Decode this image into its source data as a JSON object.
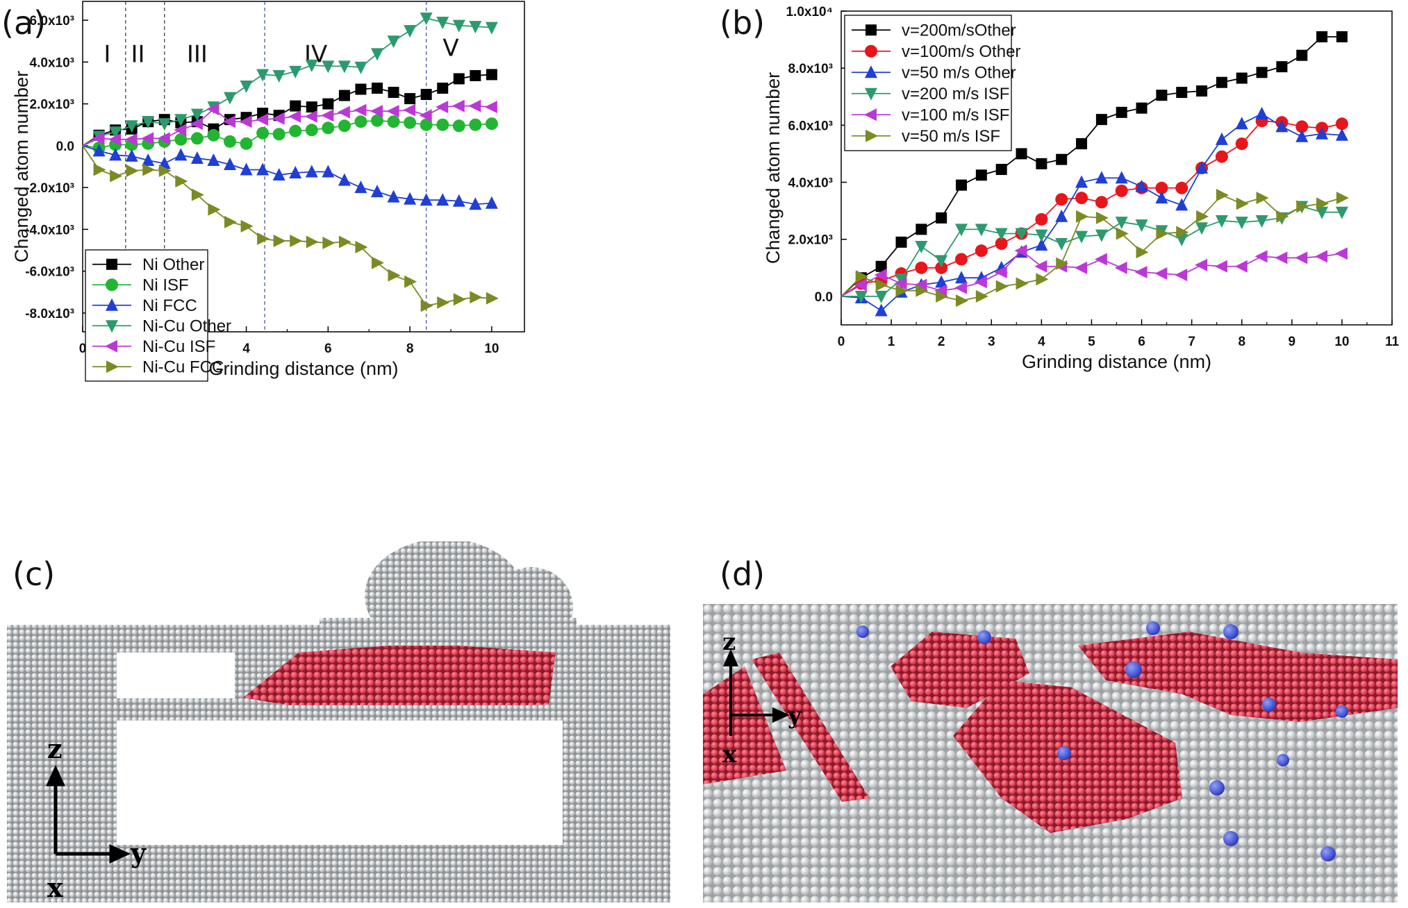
{
  "panels": {
    "a": "(a)",
    "b": "(b)",
    "c": "(c)",
    "d": "(d)"
  },
  "chart_data": [
    {
      "type": "line",
      "panel": "(a)",
      "xlabel": "Grinding distance (nm)",
      "ylabel": "Changed atom number",
      "xlim": [
        0,
        10.8
      ],
      "ylim": [
        -8900,
        6900
      ],
      "xticks": [
        "0",
        "2",
        "4",
        "6",
        "8",
        "10"
      ],
      "xtick_values": [
        0,
        2,
        4,
        6,
        8,
        10
      ],
      "yticks": [
        "-8.0x10³",
        "-6.0x10³",
        "-4.0x10³",
        "-2.0x10³",
        "0.0",
        "2.0x10³",
        "4.0x10³",
        "6.0x10³"
      ],
      "ytick_values": [
        -8000,
        -6000,
        -4000,
        -2000,
        0,
        2000,
        4000,
        6000
      ],
      "vlines": [
        1.05,
        2.0,
        4.45,
        8.4
      ],
      "regions": [
        {
          "label": "I",
          "x": 0.6,
          "y": 4000
        },
        {
          "label": "II",
          "x": 1.35,
          "y": 4000
        },
        {
          "label": "III",
          "x": 2.8,
          "y": 4000
        },
        {
          "label": "IV",
          "x": 5.7,
          "y": 4000
        },
        {
          "label": "V",
          "x": 9.0,
          "y": 4300
        }
      ],
      "legend_position": "bottom-left",
      "x": [
        0,
        0.4,
        0.8,
        1.2,
        1.6,
        2.0,
        2.4,
        2.8,
        3.2,
        3.6,
        4.0,
        4.4,
        4.8,
        5.2,
        5.6,
        6.0,
        6.4,
        6.8,
        7.2,
        7.6,
        8.0,
        8.4,
        8.8,
        9.2,
        9.6,
        10.0
      ],
      "series": [
        {
          "name": "Ni Other",
          "color": "#000000",
          "marker": "square",
          "values": [
            0,
            500,
            750,
            800,
            1150,
            1250,
            1100,
            1150,
            800,
            1250,
            1350,
            1550,
            1450,
            1900,
            1850,
            2000,
            2400,
            2700,
            2750,
            2550,
            2250,
            2450,
            2750,
            3200,
            3350,
            3400
          ]
        },
        {
          "name": "Ni ISF",
          "color": "#22b531",
          "marker": "circle",
          "values": [
            0,
            -100,
            50,
            50,
            100,
            200,
            300,
            350,
            500,
            200,
            100,
            600,
            550,
            700,
            750,
            850,
            950,
            1150,
            1200,
            1150,
            1100,
            1000,
            1000,
            950,
            1000,
            1050
          ]
        },
        {
          "name": "Ni FCC",
          "color": "#1f3fd6",
          "marker": "triangle-up",
          "values": [
            0,
            -250,
            -450,
            -500,
            -700,
            -850,
            -450,
            -600,
            -700,
            -900,
            -1150,
            -1150,
            -1400,
            -1300,
            -1250,
            -1250,
            -1650,
            -2000,
            -2200,
            -2450,
            -2550,
            -2600,
            -2600,
            -2650,
            -2800,
            -2750
          ]
        },
        {
          "name": "Ni-Cu Other",
          "color": "#2c9a6e",
          "marker": "triangle-down",
          "values": [
            0,
            450,
            650,
            950,
            1150,
            1050,
            1250,
            1500,
            1850,
            2300,
            2850,
            3400,
            3350,
            3550,
            3850,
            3800,
            3800,
            3750,
            4400,
            5000,
            5500,
            6100,
            5900,
            5750,
            5700,
            5650
          ]
        },
        {
          "name": "Ni-Cu ISF",
          "color": "#bb38d6",
          "marker": "triangle-left",
          "values": [
            0,
            350,
            300,
            300,
            350,
            350,
            750,
            1050,
            1750,
            1150,
            1150,
            1250,
            1300,
            1400,
            1400,
            1450,
            1600,
            1700,
            1650,
            1650,
            1700,
            1450,
            1850,
            1900,
            1900,
            1850
          ]
        },
        {
          "name": "Ni-Cu FCC",
          "color": "#7c8a23",
          "marker": "triangle-right",
          "values": [
            0,
            -1150,
            -1450,
            -1200,
            -1150,
            -1200,
            -1700,
            -2350,
            -3050,
            -3650,
            -3850,
            -4450,
            -4550,
            -4550,
            -4600,
            -4650,
            -4600,
            -4850,
            -5600,
            -6200,
            -6500,
            -7650,
            -7500,
            -7350,
            -7250,
            -7300
          ]
        }
      ]
    },
    {
      "type": "line",
      "panel": "(b)",
      "xlabel": "Grinding distance (nm)",
      "ylabel": "Changed atom number",
      "xlim": [
        0,
        11
      ],
      "ylim": [
        -1000,
        10000
      ],
      "xticks": [
        "0",
        "1",
        "2",
        "3",
        "4",
        "5",
        "6",
        "7",
        "8",
        "9",
        "10",
        "11"
      ],
      "xtick_values": [
        0,
        1,
        2,
        3,
        4,
        5,
        6,
        7,
        8,
        9,
        10,
        11
      ],
      "yticks": [
        "0.0",
        "2.0x10³",
        "4.0x10³",
        "6.0x10³",
        "8.0x10³",
        "1.0x10⁴"
      ],
      "ytick_values": [
        0,
        2000,
        4000,
        6000,
        8000,
        10000
      ],
      "legend_position": "top-left",
      "x": [
        0,
        0.4,
        0.8,
        1.2,
        1.6,
        2.0,
        2.4,
        2.8,
        3.2,
        3.6,
        4.0,
        4.4,
        4.8,
        5.2,
        5.6,
        6.0,
        6.4,
        6.8,
        7.2,
        7.6,
        8.0,
        8.4,
        8.8,
        9.2,
        9.6,
        10.0
      ],
      "series": [
        {
          "name": "v=200m/sOther",
          "color": "#000000",
          "marker": "square",
          "values": [
            0,
            650,
            1050,
            1900,
            2350,
            2750,
            3900,
            4250,
            4450,
            5000,
            4650,
            4800,
            5350,
            6200,
            6450,
            6600,
            7050,
            7150,
            7200,
            7500,
            7650,
            7850,
            8050,
            8450,
            9100,
            9100
          ]
        },
        {
          "name": "v=100m/s Other",
          "color": "#e8151b",
          "marker": "circle",
          "values": [
            0,
            450,
            550,
            800,
            1000,
            1000,
            1300,
            1600,
            1850,
            2200,
            2700,
            3400,
            3450,
            3300,
            3700,
            3800,
            3800,
            3800,
            4500,
            4900,
            5350,
            6150,
            6100,
            5950,
            5900,
            6050
          ]
        },
        {
          "name": "v=50 m/s Other",
          "color": "#1f3fd6",
          "marker": "triangle-up",
          "values": [
            0,
            -50,
            -500,
            150,
            400,
            500,
            650,
            650,
            1000,
            1550,
            1800,
            2800,
            4000,
            4150,
            4150,
            3850,
            3450,
            3200,
            4500,
            5500,
            6050,
            6400,
            5950,
            5600,
            5700,
            5650
          ]
        },
        {
          "name": "v=200 m/s  ISF",
          "color": "#2c9a6e",
          "marker": "triangle-down",
          "values": [
            0,
            0,
            0,
            600,
            1750,
            1250,
            2350,
            2350,
            2200,
            2200,
            2150,
            1850,
            2100,
            2150,
            2600,
            2500,
            2300,
            2000,
            2400,
            2650,
            2600,
            2650,
            2750,
            3150,
            2950,
            2950
          ]
        },
        {
          "name": "v=100 m/s  ISF",
          "color": "#bb38d6",
          "marker": "triangle-left",
          "values": [
            0,
            400,
            750,
            450,
            400,
            200,
            300,
            500,
            850,
            1600,
            1050,
            1050,
            1000,
            1300,
            1000,
            850,
            800,
            750,
            1100,
            1050,
            1050,
            1400,
            1350,
            1350,
            1400,
            1500
          ]
        },
        {
          "name": "v=50 m/s  ISF",
          "color": "#7c8a23",
          "marker": "triangle-right",
          "values": [
            0,
            700,
            400,
            200,
            200,
            0,
            -150,
            0,
            350,
            450,
            600,
            1150,
            2800,
            2750,
            2200,
            1550,
            2200,
            2250,
            2800,
            3550,
            3250,
            3450,
            2800,
            3150,
            3250,
            3450
          ]
        }
      ]
    }
  ],
  "atom_images": {
    "c": {
      "axis_z": "z",
      "axis_y": "y",
      "axis_x": "x"
    },
    "d": {
      "axis_z": "z",
      "axis_y": "y",
      "axis_x": "x"
    }
  }
}
